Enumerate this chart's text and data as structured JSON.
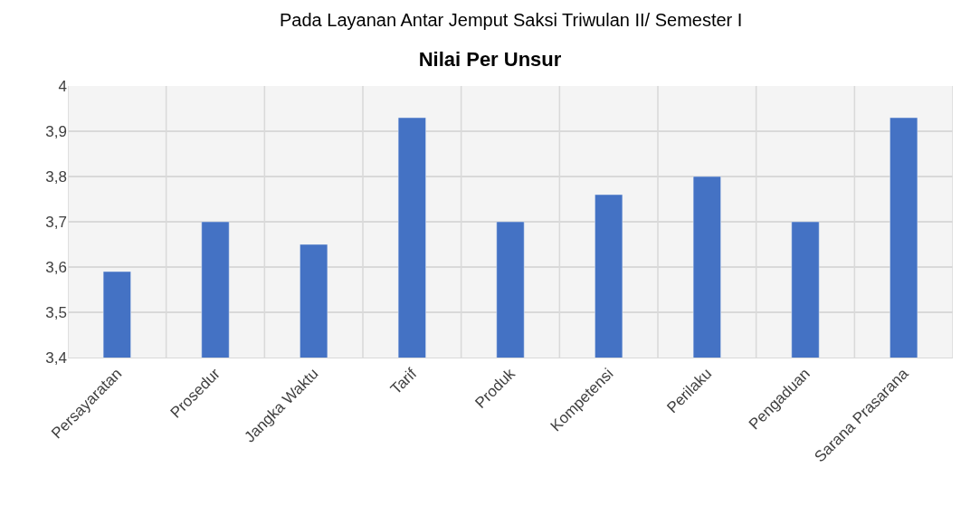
{
  "chart_data": {
    "type": "bar",
    "title": "Nilai Per Unsur",
    "annotations": [
      "Pada Layanan Antar Jemput Saksi Triwulan II/ Semester I"
    ],
    "categories": [
      "Persayaratan",
      "Prosedur",
      "Jangka Waktu",
      "Tarif",
      "Produk",
      "Kompetensi",
      "Perilaku",
      "Pengaduan",
      "Sarana Prasarana"
    ],
    "values": [
      3.59,
      3.7,
      3.65,
      3.93,
      3.7,
      3.76,
      3.8,
      3.7,
      3.93
    ],
    "color": "#4472c4",
    "ylim": [
      3.4,
      4
    ],
    "yticks": [
      {
        "value": 3.4,
        "label": "3,4"
      },
      {
        "value": 3.5,
        "label": "3,5"
      },
      {
        "value": 3.6,
        "label": "3,6"
      },
      {
        "value": 3.7,
        "label": "3,7"
      },
      {
        "value": 3.8,
        "label": "3,8"
      },
      {
        "value": 3.9,
        "label": "3,9"
      },
      {
        "value": 4,
        "label": "4"
      }
    ],
    "grid": true
  }
}
